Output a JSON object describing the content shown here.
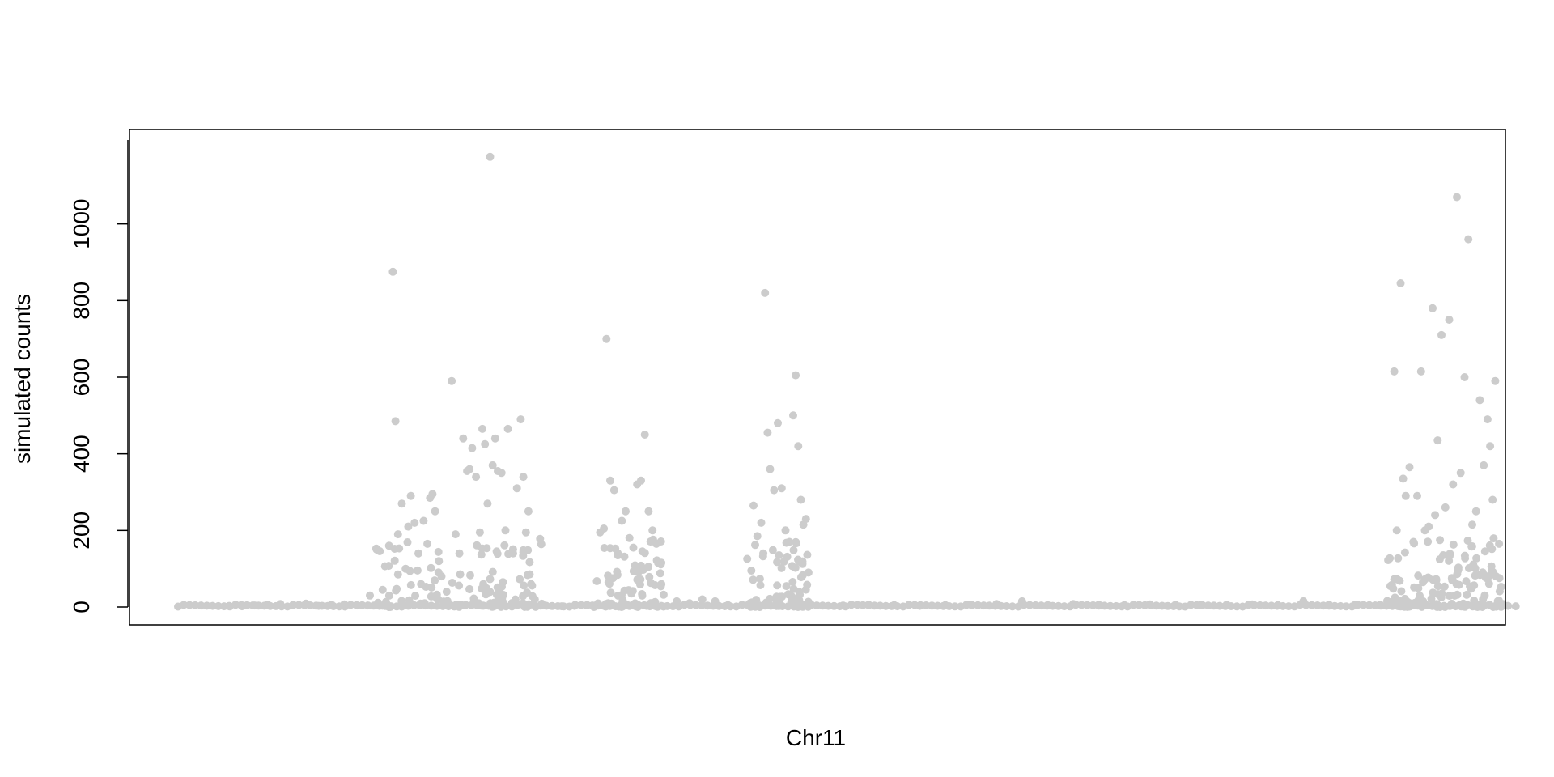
{
  "chart_data": {
    "type": "scatter",
    "title": "",
    "xlabel": "Chr11",
    "ylabel": "simulated counts",
    "ylim": [
      -50,
      1200
    ],
    "xlim": [
      0,
      1
    ],
    "x_axis_ticks": "none",
    "yticks": [
      0,
      200,
      400,
      600,
      800,
      1000
    ],
    "ytick_labels": [
      "0",
      "200",
      "400",
      "600",
      "800",
      "1000"
    ],
    "grid": false,
    "legend": "none",
    "point_color": "#cccccc",
    "series": [
      {
        "points": [
          [
            0.04,
            3
          ],
          [
            0.05,
            2
          ],
          [
            0.06,
            4
          ],
          [
            0.07,
            6
          ],
          [
            0.08,
            8
          ],
          [
            0.09,
            5
          ],
          [
            0.1,
            9
          ],
          [
            0.11,
            3
          ],
          [
            0.12,
            6
          ],
          [
            0.13,
            7
          ],
          [
            0.14,
            4
          ],
          [
            0.15,
            30
          ],
          [
            0.16,
            45
          ],
          [
            0.165,
            160
          ],
          [
            0.168,
            875
          ],
          [
            0.17,
            485
          ],
          [
            0.172,
            190
          ],
          [
            0.175,
            270
          ],
          [
            0.178,
            100
          ],
          [
            0.18,
            210
          ],
          [
            0.182,
            290
          ],
          [
            0.185,
            220
          ],
          [
            0.188,
            140
          ],
          [
            0.19,
            60
          ],
          [
            0.192,
            225
          ],
          [
            0.195,
            165
          ],
          [
            0.197,
            285
          ],
          [
            0.199,
            295
          ],
          [
            0.201,
            250
          ],
          [
            0.204,
            120
          ],
          [
            0.206,
            80
          ],
          [
            0.21,
            40
          ],
          [
            0.214,
            590
          ],
          [
            0.217,
            190
          ],
          [
            0.22,
            140
          ],
          [
            0.223,
            440
          ],
          [
            0.226,
            355
          ],
          [
            0.228,
            360
          ],
          [
            0.23,
            415
          ],
          [
            0.233,
            340
          ],
          [
            0.236,
            195
          ],
          [
            0.238,
            465
          ],
          [
            0.24,
            425
          ],
          [
            0.242,
            270
          ],
          [
            0.244,
            1175
          ],
          [
            0.246,
            370
          ],
          [
            0.248,
            440
          ],
          [
            0.25,
            355
          ],
          [
            0.253,
            350
          ],
          [
            0.256,
            200
          ],
          [
            0.258,
            465
          ],
          [
            0.262,
            140
          ],
          [
            0.265,
            310
          ],
          [
            0.268,
            490
          ],
          [
            0.27,
            340
          ],
          [
            0.272,
            195
          ],
          [
            0.274,
            250
          ],
          [
            0.276,
            60
          ],
          [
            0.279,
            20
          ],
          [
            0.3,
            2
          ],
          [
            0.31,
            3
          ],
          [
            0.32,
            5
          ],
          [
            0.33,
            195
          ],
          [
            0.333,
            205
          ],
          [
            0.335,
            700
          ],
          [
            0.338,
            330
          ],
          [
            0.341,
            305
          ],
          [
            0.344,
            135
          ],
          [
            0.347,
            225
          ],
          [
            0.35,
            250
          ],
          [
            0.353,
            180
          ],
          [
            0.356,
            155
          ],
          [
            0.359,
            320
          ],
          [
            0.362,
            330
          ],
          [
            0.365,
            450
          ],
          [
            0.368,
            250
          ],
          [
            0.371,
            200
          ],
          [
            0.374,
            165
          ],
          [
            0.378,
            60
          ],
          [
            0.39,
            15
          ],
          [
            0.4,
            10
          ],
          [
            0.41,
            20
          ],
          [
            0.42,
            15
          ],
          [
            0.43,
            5
          ],
          [
            0.45,
            265
          ],
          [
            0.453,
            185
          ],
          [
            0.456,
            220
          ],
          [
            0.459,
            820
          ],
          [
            0.461,
            455
          ],
          [
            0.463,
            360
          ],
          [
            0.466,
            305
          ],
          [
            0.469,
            480
          ],
          [
            0.472,
            310
          ],
          [
            0.475,
            200
          ],
          [
            0.478,
            170
          ],
          [
            0.481,
            500
          ],
          [
            0.483,
            605
          ],
          [
            0.485,
            420
          ],
          [
            0.487,
            280
          ],
          [
            0.489,
            215
          ],
          [
            0.491,
            230
          ],
          [
            0.493,
            90
          ],
          [
            0.52,
            4
          ],
          [
            0.54,
            6
          ],
          [
            0.56,
            5
          ],
          [
            0.58,
            3
          ],
          [
            0.6,
            5
          ],
          [
            0.62,
            6
          ],
          [
            0.64,
            8
          ],
          [
            0.66,
            15
          ],
          [
            0.68,
            5
          ],
          [
            0.7,
            8
          ],
          [
            0.72,
            6
          ],
          [
            0.74,
            5
          ],
          [
            0.76,
            7
          ],
          [
            0.78,
            6
          ],
          [
            0.8,
            5
          ],
          [
            0.82,
            6
          ],
          [
            0.84,
            7
          ],
          [
            0.86,
            5
          ],
          [
            0.88,
            15
          ],
          [
            0.9,
            6
          ],
          [
            0.92,
            5
          ],
          [
            0.94,
            6
          ],
          [
            0.951,
            615
          ],
          [
            0.953,
            200
          ],
          [
            0.956,
            845
          ],
          [
            0.958,
            335
          ],
          [
            0.96,
            290
          ],
          [
            0.963,
            365
          ],
          [
            0.966,
            170
          ],
          [
            0.969,
            290
          ],
          [
            0.972,
            615
          ],
          [
            0.975,
            200
          ],
          [
            0.978,
            210
          ],
          [
            0.981,
            780
          ],
          [
            0.983,
            240
          ],
          [
            0.985,
            435
          ],
          [
            0.988,
            710
          ],
          [
            0.991,
            260
          ],
          [
            0.994,
            750
          ],
          [
            0.997,
            320
          ],
          [
            1.0,
            1070
          ],
          [
            1.003,
            350
          ],
          [
            1.006,
            600
          ],
          [
            1.009,
            960
          ],
          [
            1.012,
            215
          ],
          [
            1.015,
            250
          ],
          [
            1.018,
            540
          ],
          [
            1.021,
            370
          ],
          [
            1.024,
            490
          ],
          [
            1.026,
            420
          ],
          [
            1.028,
            280
          ],
          [
            1.03,
            590
          ],
          [
            1.033,
            165
          ],
          [
            1.036,
            8
          ],
          [
            1.04,
            3
          ],
          [
            1.046,
            2
          ]
        ]
      }
    ]
  }
}
